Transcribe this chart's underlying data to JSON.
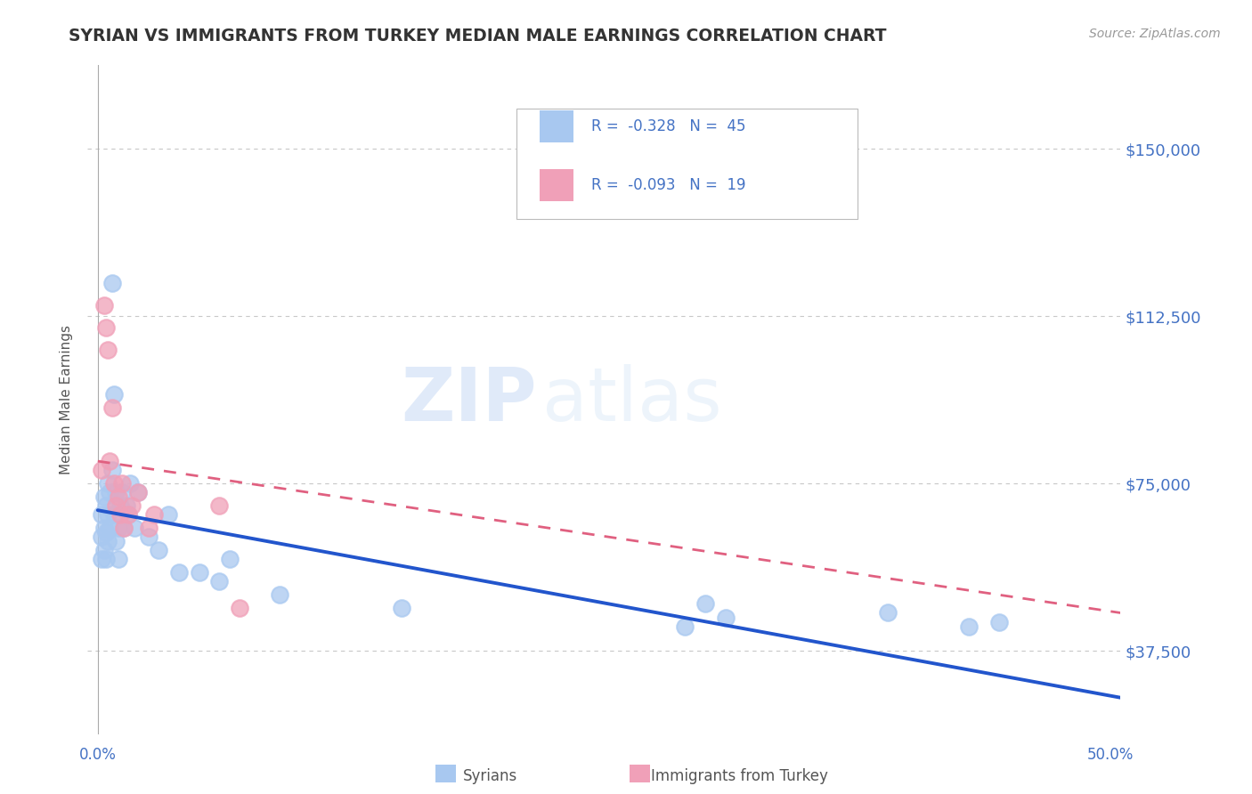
{
  "title": "SYRIAN VS IMMIGRANTS FROM TURKEY MEDIAN MALE EARNINGS CORRELATION CHART",
  "source": "Source: ZipAtlas.com",
  "ylabel": "Median Male Earnings",
  "xlim": [
    -0.005,
    0.505
  ],
  "ylim": [
    18750,
    168750
  ],
  "yticks": [
    37500,
    75000,
    112500,
    150000
  ],
  "ytick_labels": [
    "$37,500",
    "$75,000",
    "$112,500",
    "$150,000"
  ],
  "xtick_positions": [
    0.0,
    0.5
  ],
  "xtick_labels": [
    "0.0%",
    "50.0%"
  ],
  "background_color": "#ffffff",
  "grid_color": "#c8c8c8",
  "title_color": "#333333",
  "axis_label_color": "#555555",
  "tick_color": "#4472c4",
  "legend_r1": "-0.328",
  "legend_n1": "45",
  "legend_r2": "-0.093",
  "legend_n2": "19",
  "legend_label1": "Syrians",
  "legend_label2": "Immigrants from Turkey",
  "color_syrian": "#a8c8f0",
  "color_turkey": "#f0a0b8",
  "color_line_syrian": "#2255cc",
  "color_line_turkey": "#e06080",
  "sy_line_x0": 0.0,
  "sy_line_y0": 69000,
  "sy_line_x1": 0.505,
  "sy_line_y1": 27000,
  "tr_line_x0": 0.0,
  "tr_line_y0": 80000,
  "tr_line_x1": 0.505,
  "tr_line_y1": 46000,
  "syrians_x": [
    0.002,
    0.002,
    0.002,
    0.003,
    0.003,
    0.003,
    0.004,
    0.004,
    0.004,
    0.005,
    0.005,
    0.005,
    0.006,
    0.006,
    0.007,
    0.007,
    0.008,
    0.008,
    0.009,
    0.009,
    0.01,
    0.01,
    0.011,
    0.012,
    0.013,
    0.014,
    0.015,
    0.016,
    0.018,
    0.02,
    0.025,
    0.03,
    0.035,
    0.04,
    0.05,
    0.06,
    0.065,
    0.09,
    0.15,
    0.29,
    0.3,
    0.31,
    0.39,
    0.43,
    0.445
  ],
  "syrians_y": [
    68000,
    63000,
    58000,
    72000,
    65000,
    60000,
    70000,
    64000,
    58000,
    75000,
    68000,
    62000,
    73000,
    65000,
    120000,
    78000,
    95000,
    68000,
    73000,
    62000,
    65000,
    58000,
    70000,
    73000,
    65000,
    70000,
    68000,
    75000,
    65000,
    73000,
    63000,
    60000,
    68000,
    55000,
    55000,
    53000,
    58000,
    50000,
    47000,
    43000,
    48000,
    45000,
    46000,
    43000,
    44000
  ],
  "turkey_x": [
    0.002,
    0.003,
    0.004,
    0.005,
    0.006,
    0.007,
    0.008,
    0.009,
    0.01,
    0.011,
    0.012,
    0.013,
    0.015,
    0.017,
    0.02,
    0.025,
    0.028,
    0.06,
    0.07
  ],
  "turkey_y": [
    78000,
    115000,
    110000,
    105000,
    80000,
    92000,
    75000,
    70000,
    72000,
    68000,
    75000,
    65000,
    68000,
    70000,
    73000,
    65000,
    68000,
    70000,
    47000
  ]
}
